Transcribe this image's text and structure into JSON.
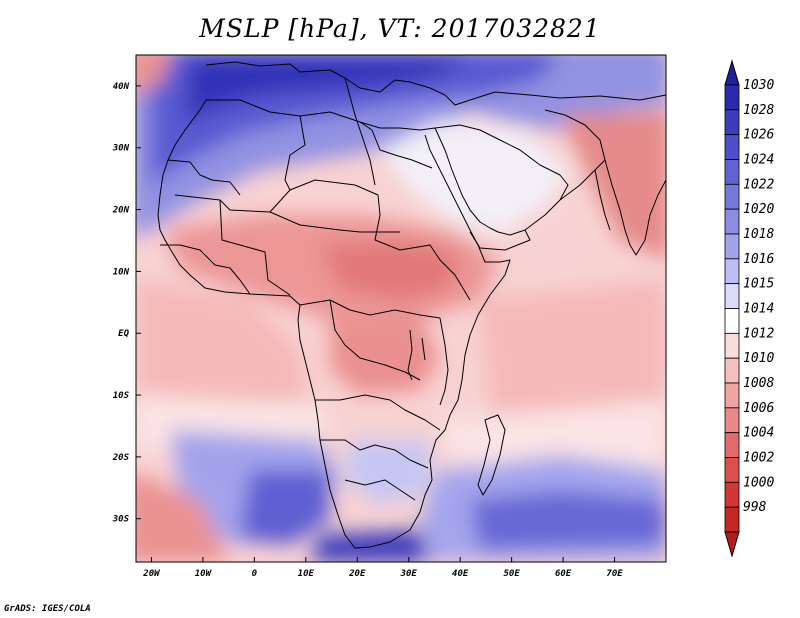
{
  "title": "MSLP [hPa], VT: 2017032821",
  "credit": "GrADS: IGES/COLA",
  "map": {
    "lon_range": [
      -23,
      80
    ],
    "lat_range": [
      -37,
      45
    ],
    "lon_ticks": [
      {
        "value": -20,
        "label": "20W"
      },
      {
        "value": -10,
        "label": "10W"
      },
      {
        "value": 0,
        "label": "0"
      },
      {
        "value": 10,
        "label": "10E"
      },
      {
        "value": 20,
        "label": "20E"
      },
      {
        "value": 30,
        "label": "30E"
      },
      {
        "value": 40,
        "label": "40E"
      },
      {
        "value": 50,
        "label": "50E"
      },
      {
        "value": 60,
        "label": "60E"
      },
      {
        "value": 70,
        "label": "70E"
      }
    ],
    "lat_ticks": [
      {
        "value": 40,
        "label": "40N"
      },
      {
        "value": 30,
        "label": "30N"
      },
      {
        "value": 20,
        "label": "20N"
      },
      {
        "value": 10,
        "label": "10N"
      },
      {
        "value": 0,
        "label": "EQ"
      },
      {
        "value": -10,
        "label": "10S"
      },
      {
        "value": -20,
        "label": "20S"
      },
      {
        "value": -30,
        "label": "30S"
      }
    ]
  },
  "colorbar": {
    "labels": [
      "1030",
      "1028",
      "1026",
      "1024",
      "1022",
      "1020",
      "1018",
      "1016",
      "1015",
      "1014",
      "1012",
      "1010",
      "1008",
      "1006",
      "1004",
      "1002",
      "1000",
      "998"
    ],
    "colors": [
      "#2a2ab0",
      "#3c3cbf",
      "#4f4fc9",
      "#6262d2",
      "#7777dc",
      "#8c8ce5",
      "#a3a3ec",
      "#bebef4",
      "#dcdcfa",
      "#ffffff",
      "#fbdcdc",
      "#f6c0c0",
      "#f1a4a4",
      "#eb8888",
      "#e46b6b",
      "#dd4f4f",
      "#d43636",
      "#c42626"
    ],
    "top_arrow_color": "#1f1fa0",
    "bottom_arrow_color": "#b51d1d"
  }
}
